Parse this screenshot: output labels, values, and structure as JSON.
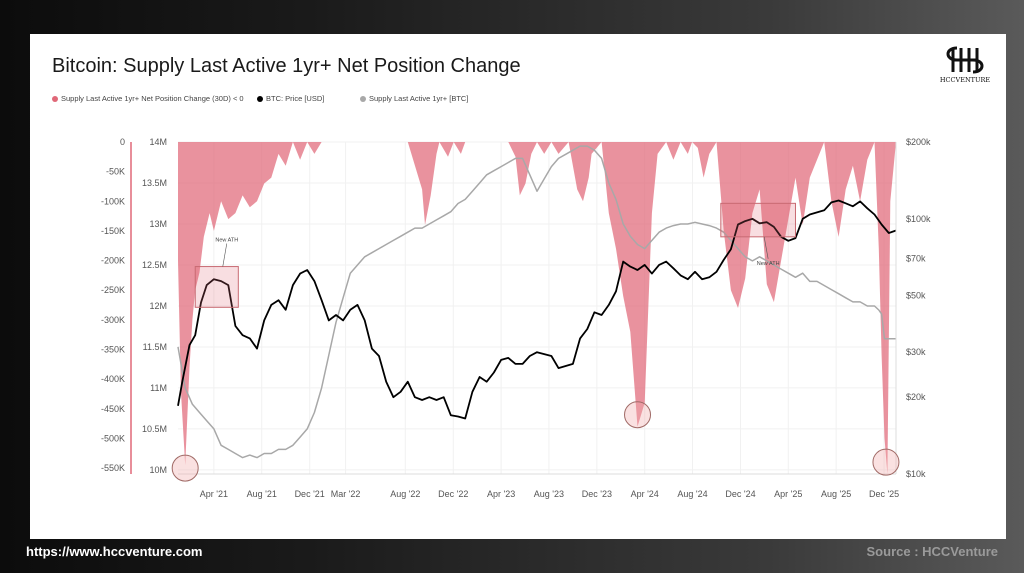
{
  "footer": {
    "url": "https://www.hccventure.com",
    "source": "Source : HCCVenture"
  },
  "logo": {
    "text": "HCCVENTURE"
  },
  "colors": {
    "pink": "#e06878",
    "price": "#000000",
    "supply": "#a8a8a8"
  },
  "chart_data": {
    "type": "line",
    "title": "Bitcoin: Supply Last Active 1yr+ Net Position Change",
    "legend": [
      {
        "label": "Supply Last Active 1yr+ Net Position Change (30D) < 0",
        "color": "#e06878"
      },
      {
        "label": "BTC: Price [USD]",
        "color": "#000000"
      },
      {
        "label": "Supply Last Active 1yr+ [BTC]",
        "color": "#a8a8a8"
      }
    ],
    "legend_position": "top-left",
    "x_tick_labels": [
      "Apr '21",
      "Aug '21",
      "Dec '21",
      "Mar '22",
      "Aug '22",
      "Dec '22",
      "Apr '23",
      "Aug '23",
      "Dec '23",
      "Apr '24",
      "Aug '24",
      "Dec '24",
      "Apr '25",
      "Aug '25",
      "Dec '25"
    ],
    "x_tick_positions": [
      2021.25,
      2021.583,
      2021.917,
      2022.167,
      2022.583,
      2022.917,
      2023.25,
      2023.583,
      2023.917,
      2024.25,
      2024.583,
      2024.917,
      2025.25,
      2025.583,
      2025.917
    ],
    "xlim": [
      2021.0,
      2026.0
    ],
    "axes": {
      "net_change": {
        "side": "far-left",
        "ylim": [
          -560000,
          0
        ],
        "tick_labels": [
          "0",
          "-50K",
          "-100K",
          "-150K",
          "-200K",
          "-250K",
          "-300K",
          "-350K",
          "-400K",
          "-450K",
          "-500K",
          "-550K"
        ],
        "tick_values": [
          0,
          -50000,
          -100000,
          -150000,
          -200000,
          -250000,
          -300000,
          -350000,
          -400000,
          -450000,
          -500000,
          -550000
        ]
      },
      "supply": {
        "side": "left",
        "ylim": [
          9950000,
          14000000
        ],
        "tick_labels": [
          "14M",
          "13.5M",
          "13M",
          "12.5M",
          "12M",
          "11.5M",
          "11M",
          "10.5M",
          "10M"
        ],
        "tick_values": [
          14000000,
          13500000,
          13000000,
          12500000,
          12000000,
          11500000,
          11000000,
          10500000,
          10000000
        ]
      },
      "price": {
        "side": "right",
        "scale": "log",
        "ylim": [
          10000,
          200000
        ],
        "tick_labels": [
          "$200k",
          "$100k",
          "$70k",
          "$50k",
          "$30k",
          "$20k",
          "$10k"
        ],
        "tick_values": [
          200000,
          100000,
          70000,
          50000,
          30000,
          20000,
          10000
        ]
      }
    },
    "grid": true,
    "series": [
      {
        "name": "Supply Last Active 1yr+ Net Position Change (30D) < 0",
        "axis": "net_change",
        "style": "area",
        "color": "#e06878",
        "x": [
          2021.0,
          2021.02,
          2021.05,
          2021.08,
          2021.1,
          2021.12,
          2021.15,
          2021.18,
          2021.22,
          2021.25,
          2021.3,
          2021.35,
          2021.4,
          2021.45,
          2021.5,
          2021.55,
          2021.6,
          2021.65,
          2021.7,
          2021.75,
          2021.8,
          2021.85,
          2021.9,
          2021.95,
          2022.0,
          2022.6,
          2022.7,
          2022.72,
          2022.76,
          2022.8,
          2022.82,
          2022.88,
          2022.92,
          2022.97,
          2023.0,
          2023.3,
          2023.35,
          2023.38,
          2023.42,
          2023.46,
          2023.5,
          2023.55,
          2023.6,
          2023.65,
          2023.72,
          2023.75,
          2023.78,
          2023.82,
          2023.86,
          2023.88,
          2023.95,
          2024.0,
          2024.05,
          2024.1,
          2024.15,
          2024.2,
          2024.25,
          2024.3,
          2024.34,
          2024.4,
          2024.45,
          2024.5,
          2024.55,
          2024.58,
          2024.62,
          2024.66,
          2024.7,
          2024.75,
          2024.8,
          2024.85,
          2024.9,
          2024.95,
          2025.0,
          2025.05,
          2025.1,
          2025.15,
          2025.2,
          2025.25,
          2025.3,
          2025.35,
          2025.4,
          2025.5,
          2025.55,
          2025.6,
          2025.65,
          2025.7,
          2025.75,
          2025.8,
          2025.85,
          2025.88,
          2025.9,
          2025.92,
          2025.94,
          2025.96,
          2026.0
        ],
        "y": [
          -200000,
          -420000,
          -545000,
          -380000,
          -300000,
          -250000,
          -220000,
          -160000,
          -120000,
          -150000,
          -100000,
          -130000,
          -120000,
          -90000,
          -110000,
          -100000,
          -70000,
          -60000,
          -20000,
          -40000,
          0,
          -30000,
          0,
          -20000,
          0,
          0,
          -80000,
          -140000,
          -90000,
          -20000,
          0,
          -25000,
          0,
          -20000,
          0,
          0,
          -25000,
          -90000,
          -70000,
          -20000,
          0,
          -20000,
          0,
          -20000,
          0,
          -40000,
          -80000,
          -100000,
          -60000,
          -20000,
          0,
          -120000,
          -180000,
          -260000,
          -320000,
          -480000,
          -440000,
          -120000,
          -20000,
          0,
          -30000,
          0,
          -20000,
          0,
          -10000,
          -60000,
          -20000,
          0,
          -150000,
          -250000,
          -280000,
          -230000,
          -120000,
          -80000,
          -240000,
          -270000,
          -200000,
          -130000,
          -60000,
          -140000,
          -60000,
          0,
          -100000,
          -160000,
          -80000,
          -40000,
          -100000,
          -30000,
          0,
          -180000,
          -360000,
          -500000,
          -560000,
          -100000,
          0
        ]
      },
      {
        "name": "BTC: Price [USD]",
        "axis": "price",
        "style": "line",
        "color": "#000000",
        "x": [
          2021.0,
          2021.03,
          2021.08,
          2021.12,
          2021.16,
          2021.2,
          2021.25,
          2021.3,
          2021.35,
          2021.4,
          2021.45,
          2021.5,
          2021.55,
          2021.6,
          2021.65,
          2021.7,
          2021.75,
          2021.8,
          2021.85,
          2021.9,
          2021.95,
          2022.0,
          2022.05,
          2022.1,
          2022.15,
          2022.2,
          2022.25,
          2022.3,
          2022.35,
          2022.4,
          2022.45,
          2022.5,
          2022.55,
          2022.6,
          2022.65,
          2022.7,
          2022.75,
          2022.8,
          2022.85,
          2022.9,
          2022.95,
          2023.0,
          2023.05,
          2023.1,
          2023.15,
          2023.2,
          2023.25,
          2023.3,
          2023.35,
          2023.4,
          2023.45,
          2023.5,
          2023.55,
          2023.6,
          2023.65,
          2023.7,
          2023.75,
          2023.8,
          2023.85,
          2023.9,
          2023.95,
          2024.0,
          2024.05,
          2024.1,
          2024.15,
          2024.2,
          2024.25,
          2024.3,
          2024.35,
          2024.4,
          2024.45,
          2024.5,
          2024.55,
          2024.6,
          2024.65,
          2024.7,
          2024.75,
          2024.8,
          2024.85,
          2024.9,
          2024.95,
          2025.0,
          2025.05,
          2025.1,
          2025.15,
          2025.2,
          2025.25,
          2025.3,
          2025.35,
          2025.4,
          2025.45,
          2025.5,
          2025.55,
          2025.6,
          2025.65,
          2025.7,
          2025.75,
          2025.8,
          2025.85,
          2025.9,
          2025.95,
          2026.0
        ],
        "y": [
          18500,
          23000,
          32000,
          35000,
          47000,
          55000,
          58000,
          57000,
          55000,
          38000,
          35000,
          34000,
          31000,
          40000,
          46000,
          48000,
          44000,
          55000,
          61000,
          63000,
          57000,
          48000,
          40000,
          42000,
          40000,
          44000,
          46000,
          40000,
          31000,
          29000,
          23000,
          20000,
          21000,
          23000,
          20000,
          19500,
          20000,
          19500,
          20000,
          17000,
          16800,
          16500,
          21000,
          24000,
          23000,
          25000,
          28000,
          28500,
          27000,
          27000,
          29000,
          30000,
          29500,
          29000,
          26000,
          26500,
          27000,
          34000,
          37000,
          43000,
          42000,
          46000,
          52000,
          68000,
          65000,
          63000,
          66000,
          61000,
          66000,
          68000,
          64000,
          60000,
          58000,
          62000,
          58000,
          59000,
          62000,
          69000,
          76000,
          95000,
          98000,
          100000,
          96000,
          97000,
          93000,
          85000,
          82000,
          84000,
          100000,
          104000,
          106000,
          108000,
          116000,
          118000,
          115000,
          112000,
          117000,
          110000,
          104000,
          95000,
          88000,
          90000
        ]
      },
      {
        "name": "Supply Last Active 1yr+ [BTC]",
        "axis": "supply",
        "style": "line",
        "color": "#a8a8a8",
        "x": [
          2021.0,
          2021.05,
          2021.1,
          2021.15,
          2021.2,
          2021.25,
          2021.3,
          2021.35,
          2021.4,
          2021.45,
          2021.5,
          2021.55,
          2021.6,
          2021.65,
          2021.7,
          2021.75,
          2021.8,
          2021.85,
          2021.9,
          2021.95,
          2022.0,
          2022.05,
          2022.1,
          2022.15,
          2022.2,
          2022.25,
          2022.3,
          2022.35,
          2022.4,
          2022.45,
          2022.5,
          2022.55,
          2022.6,
          2022.65,
          2022.7,
          2022.75,
          2022.8,
          2022.85,
          2022.9,
          2022.95,
          2023.0,
          2023.05,
          2023.1,
          2023.15,
          2023.2,
          2023.25,
          2023.3,
          2023.35,
          2023.4,
          2023.45,
          2023.5,
          2023.55,
          2023.6,
          2023.65,
          2023.7,
          2023.75,
          2023.8,
          2023.85,
          2023.9,
          2023.95,
          2024.0,
          2024.05,
          2024.1,
          2024.15,
          2024.2,
          2024.25,
          2024.3,
          2024.35,
          2024.4,
          2024.45,
          2024.5,
          2024.55,
          2024.6,
          2024.65,
          2024.7,
          2024.75,
          2024.8,
          2024.85,
          2024.9,
          2024.95,
          2025.0,
          2025.05,
          2025.1,
          2025.15,
          2025.2,
          2025.25,
          2025.3,
          2025.35,
          2025.4,
          2025.45,
          2025.5,
          2025.55,
          2025.6,
          2025.65,
          2025.7,
          2025.75,
          2025.8,
          2025.85,
          2025.88,
          2025.9,
          2025.92,
          2026.0
        ],
        "y": [
          11500000,
          11000000,
          10800000,
          10700000,
          10600000,
          10500000,
          10300000,
          10250000,
          10200000,
          10150000,
          10180000,
          10150000,
          10200000,
          10200000,
          10250000,
          10250000,
          10300000,
          10400000,
          10500000,
          10700000,
          11000000,
          11400000,
          11800000,
          12100000,
          12400000,
          12500000,
          12600000,
          12650000,
          12700000,
          12750000,
          12800000,
          12850000,
          12900000,
          12950000,
          12950000,
          13000000,
          13050000,
          13100000,
          13150000,
          13250000,
          13300000,
          13400000,
          13500000,
          13600000,
          13650000,
          13700000,
          13750000,
          13800000,
          13800000,
          13600000,
          13400000,
          13550000,
          13700000,
          13800000,
          13850000,
          13900000,
          13950000,
          13950000,
          13900000,
          13800000,
          13500000,
          13300000,
          13000000,
          12850000,
          12750000,
          12700000,
          12800000,
          12900000,
          12950000,
          12980000,
          13000000,
          13000000,
          13020000,
          13000000,
          12980000,
          12950000,
          12900000,
          12800000,
          12700000,
          12600000,
          12550000,
          12600000,
          12550000,
          12500000,
          12450000,
          12400000,
          12350000,
          12400000,
          12300000,
          12300000,
          12250000,
          12200000,
          12150000,
          12100000,
          12050000,
          12050000,
          12000000,
          12000000,
          11950000,
          11900000,
          11600000,
          11600000
        ]
      }
    ],
    "annotations": [
      {
        "text": "New ATH",
        "type": "box",
        "x_range": [
          2021.12,
          2021.42
        ],
        "y_range": [
          45000,
          65000
        ],
        "axis": "price"
      },
      {
        "text": "New ATH",
        "type": "box",
        "x_range": [
          2024.78,
          2025.3
        ],
        "y_range": [
          85000,
          115000
        ],
        "axis": "price"
      },
      {
        "type": "circle",
        "x": 2021.05,
        "y": -550000,
        "axis": "net_change"
      },
      {
        "type": "circle",
        "x": 2024.2,
        "y": -460000,
        "axis": "net_change"
      },
      {
        "type": "circle",
        "x": 2025.93,
        "y": -540000,
        "axis": "net_change"
      }
    ]
  }
}
